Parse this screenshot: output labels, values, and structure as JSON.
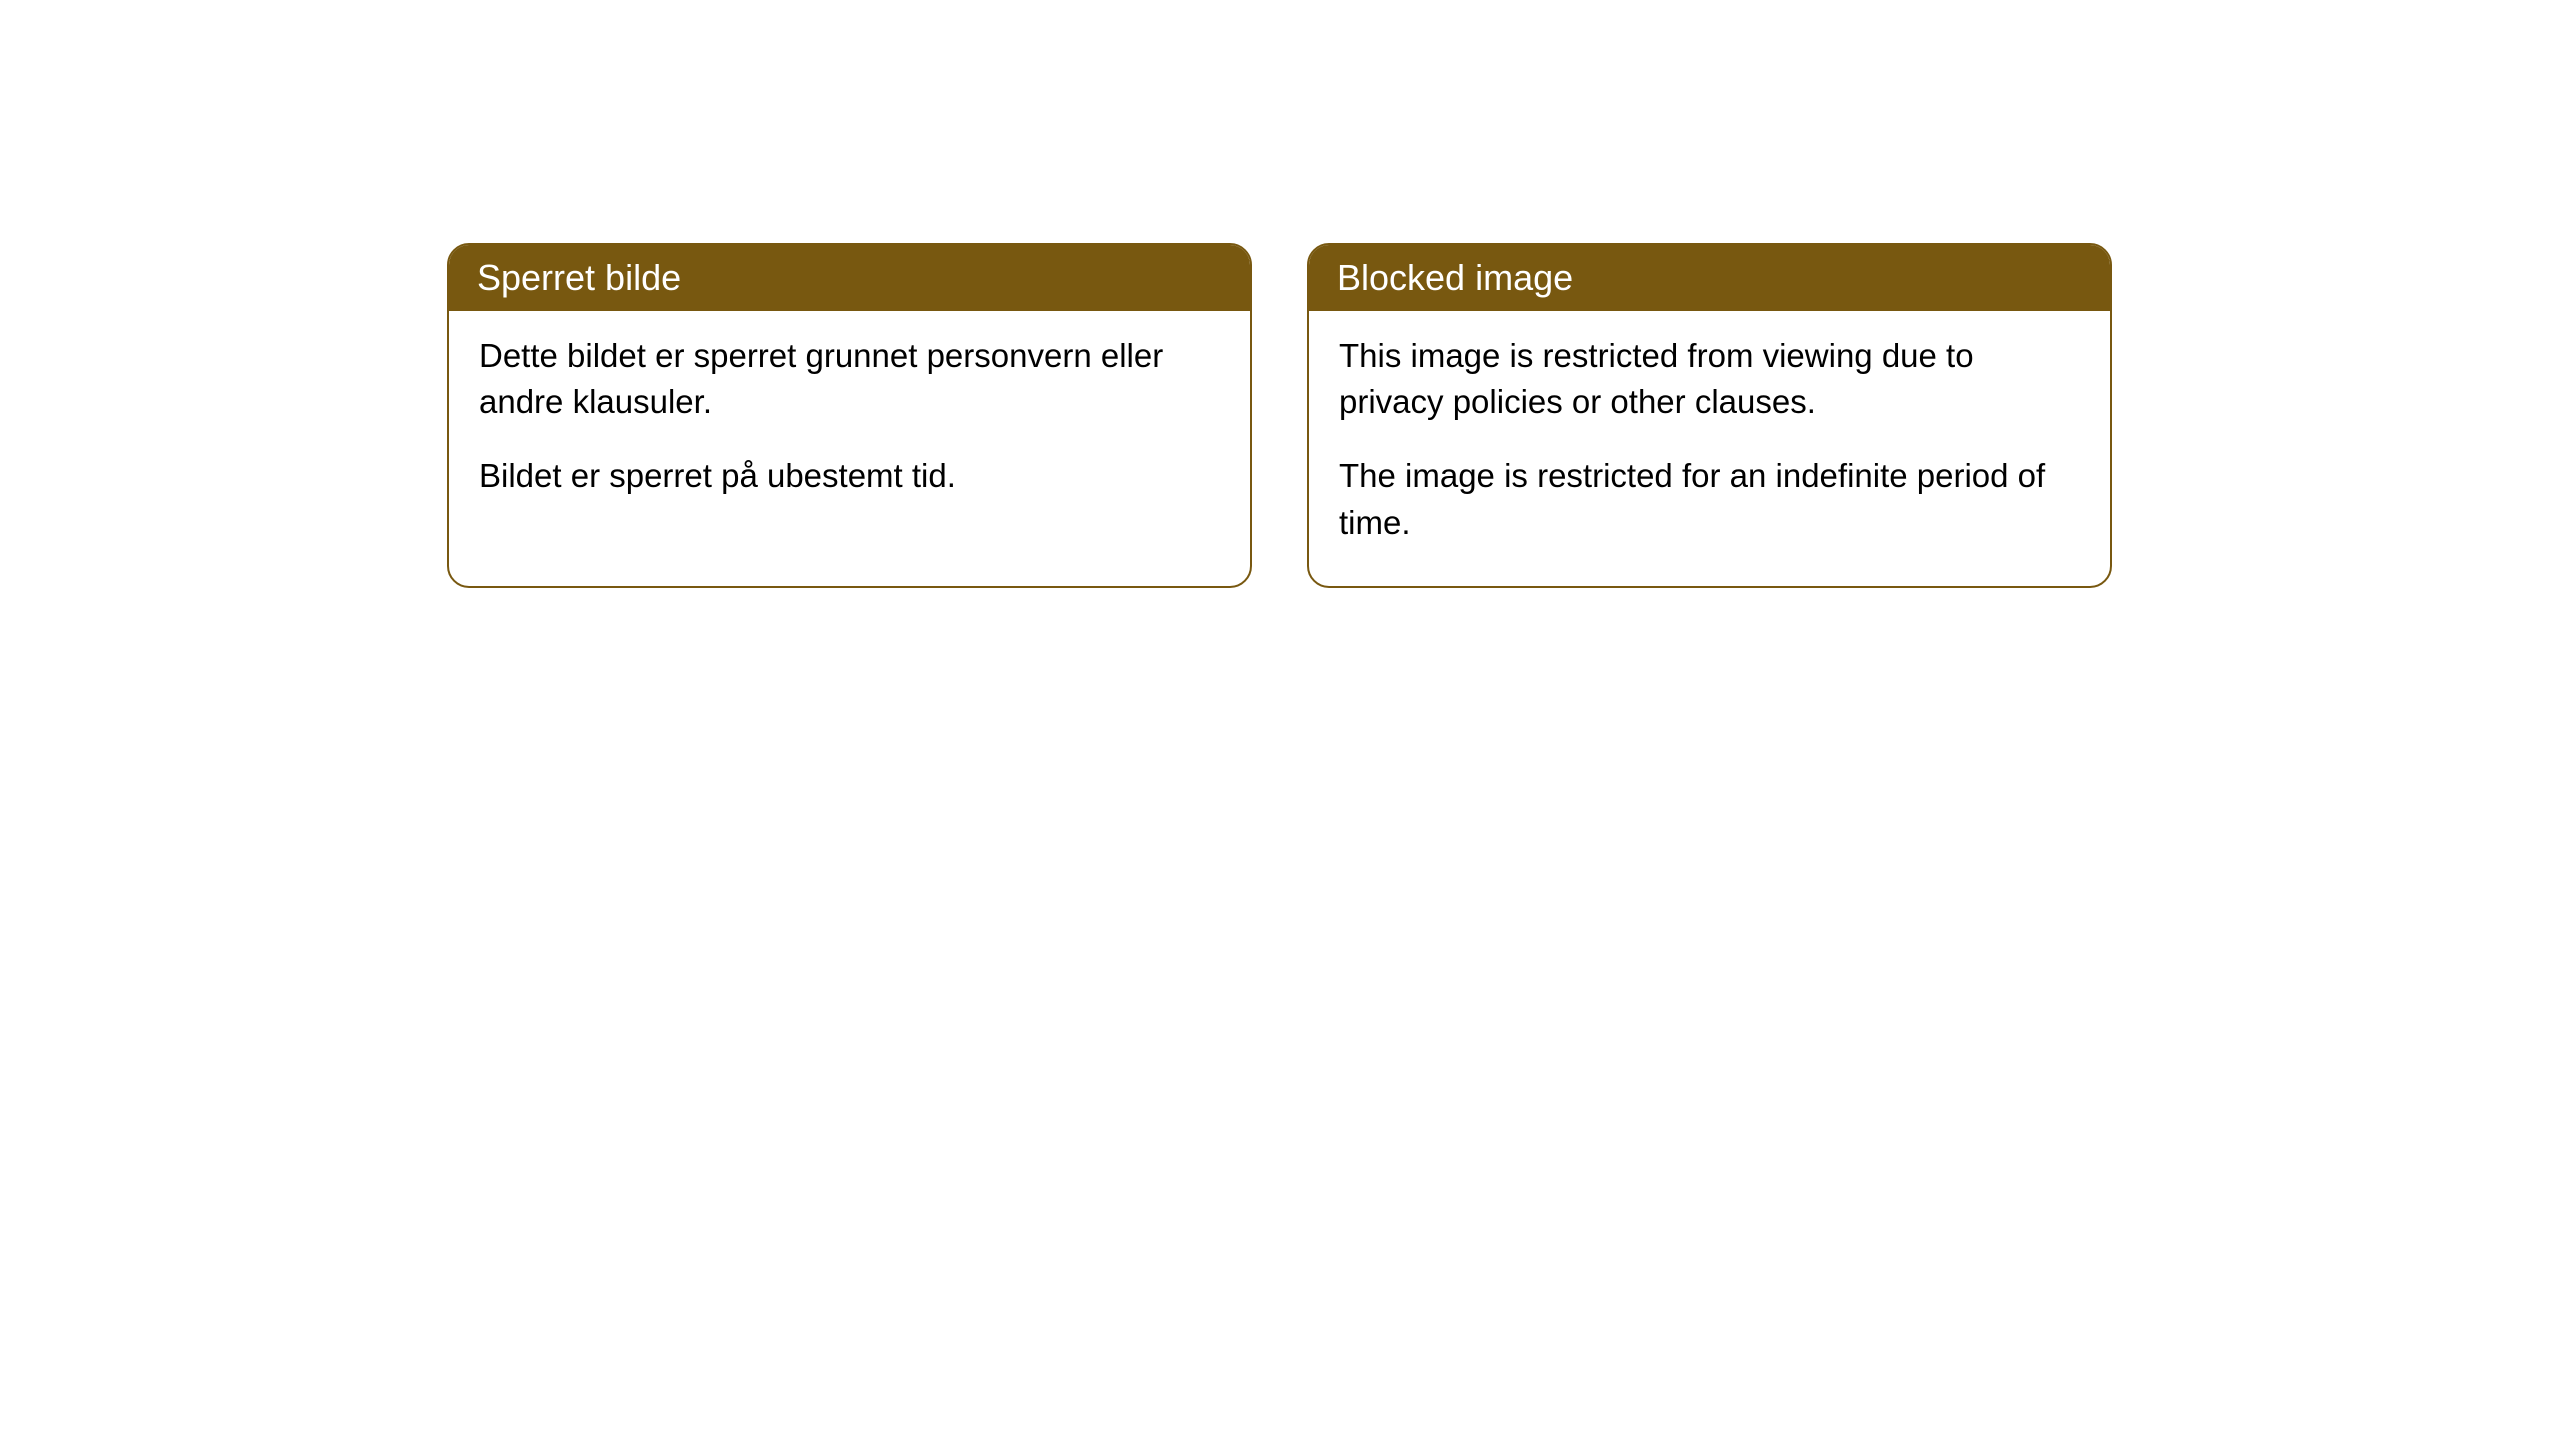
{
  "cards": [
    {
      "title": "Sperret bilde",
      "para1": "Dette bildet er sperret grunnet personvern eller andre klausuler.",
      "para2": "Bildet er sperret på ubestemt tid."
    },
    {
      "title": "Blocked image",
      "para1": "This image is restricted from viewing due to privacy policies or other clauses.",
      "para2": "The image is restricted for an indefinite period of time."
    }
  ],
  "styles": {
    "header_bg": "#785810",
    "header_text_color": "#ffffff",
    "border_color": "#785810",
    "body_bg": "#ffffff",
    "body_text_color": "#000000",
    "border_radius": 22,
    "header_fontsize": 36,
    "body_fontsize": 33
  }
}
